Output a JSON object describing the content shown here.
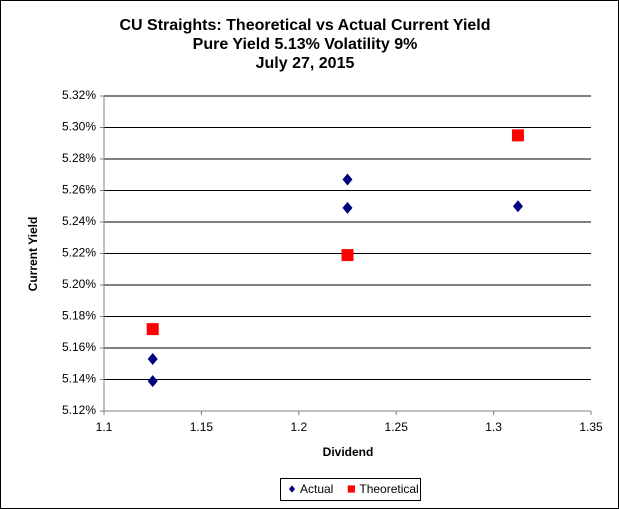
{
  "chart_data": {
    "type": "scatter",
    "title": [
      "CU Straights: Theoretical vs Actual Current Yield",
      "Pure Yield 5.13% Volatility 9%",
      "July 27, 2015"
    ],
    "xlabel": "Dividend",
    "ylabel": "Current Yield",
    "xlim": [
      1.1,
      1.35
    ],
    "xticks": [
      1.1,
      1.15,
      1.2,
      1.25,
      1.3,
      1.35
    ],
    "ylim": [
      5.12,
      5.32
    ],
    "yticks": [
      {
        "value": 5.12,
        "label": "5.12%"
      },
      {
        "value": 5.14,
        "label": "5.14%"
      },
      {
        "value": 5.16,
        "label": "5.16%"
      },
      {
        "value": 5.18,
        "label": "5.18%"
      },
      {
        "value": 5.2,
        "label": "5.20%"
      },
      {
        "value": 5.22,
        "label": "5.22%"
      },
      {
        "value": 5.24,
        "label": "5.24%"
      },
      {
        "value": 5.26,
        "label": "5.26%"
      },
      {
        "value": 5.28,
        "label": "5.28%"
      },
      {
        "value": 5.3,
        "label": "5.30%"
      },
      {
        "value": 5.32,
        "label": "5.32%"
      }
    ],
    "grid": true,
    "legend": "bottom",
    "series": [
      {
        "name": "Actual",
        "color": "#000080",
        "marker": "diamond",
        "x": [
          1.125,
          1.125,
          1.225,
          1.225,
          1.3125
        ],
        "values": [
          5.153,
          5.139,
          5.267,
          5.249,
          5.25
        ]
      },
      {
        "name": "Theoretical",
        "color": "#ff0000",
        "marker": "square",
        "x": [
          1.125,
          1.225,
          1.3125
        ],
        "values": [
          5.172,
          5.219,
          5.295
        ]
      }
    ]
  }
}
